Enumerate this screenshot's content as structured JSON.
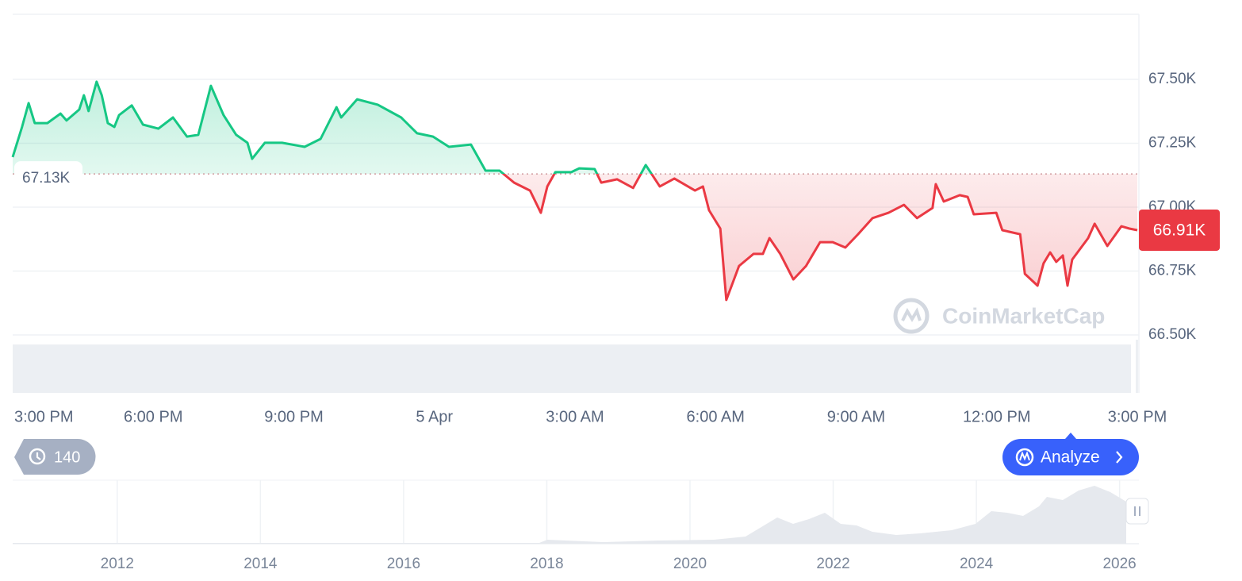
{
  "chart_data": {
    "type": "line",
    "x": [
      0,
      0.2,
      0.34,
      0.47,
      0.74,
      1.02,
      1.15,
      1.42,
      1.52,
      1.62,
      1.79,
      1.9,
      2.03,
      2.17,
      2.27,
      2.54,
      2.78,
      3.11,
      3.42,
      3.72,
      3.96,
      4.23,
      4.5,
      4.77,
      5.01,
      5.11,
      5.38,
      5.75,
      6.23,
      6.57,
      6.91,
      7.01,
      7.35,
      7.79,
      8.29,
      8.63,
      8.97,
      9.31,
      9.78,
      10.09,
      10.39,
      10.7,
      11.04,
      11.27,
      11.41,
      11.58,
      11.92,
      12.09,
      12.42,
      12.56,
      12.9,
      13.24,
      13.51,
      13.81,
      14.12,
      14.56,
      14.73,
      14.86,
      15.1,
      15.23,
      15.5,
      15.81,
      16.01,
      16.15,
      16.38,
      16.66,
      16.93,
      17.23,
      17.5,
      17.77,
      18.04,
      18.35,
      18.69,
      19.02,
      19.3,
      19.63,
      19.7,
      19.87,
      20.21,
      20.38,
      20.51,
      20.99,
      21.12,
      21.5,
      21.6,
      21.87,
      22.0,
      22.14,
      22.27,
      22.41,
      22.51,
      22.61,
      22.95,
      23.09,
      23.36,
      23.66,
      23.83,
      24
    ],
    "values": [
      67196,
      67314,
      67407,
      67329,
      67329,
      67366,
      67339,
      67382,
      67438,
      67376,
      67491,
      67438,
      67329,
      67314,
      67360,
      67398,
      67323,
      67307,
      67351,
      67276,
      67283,
      67475,
      67360,
      67283,
      67252,
      67189,
      67252,
      67252,
      67236,
      67267,
      67391,
      67351,
      67422,
      67401,
      67351,
      67289,
      67276,
      67236,
      67245,
      67143,
      67143,
      67096,
      67065,
      66978,
      67081,
      67137,
      67137,
      67152,
      67149,
      67096,
      67109,
      67075,
      67165,
      67081,
      67112,
      67065,
      67081,
      66988,
      66916,
      66637,
      66770,
      66817,
      66817,
      66879,
      66817,
      66717,
      66770,
      66863,
      66863,
      66842,
      66894,
      66957,
      66978,
      67009,
      66957,
      66997,
      67090,
      67022,
      67047,
      67040,
      66972,
      66978,
      66910,
      66894,
      66739,
      66693,
      66780,
      66823,
      66786,
      66811,
      66693,
      66795,
      66879,
      66935,
      66848,
      66925,
      66916,
      66910
    ],
    "color_up": "#16c784",
    "color_down": "#ea3943",
    "baseline": {
      "value": 67130,
      "label": "67.13K"
    },
    "last_price": {
      "value": 66910,
      "label": "66.91K"
    },
    "xlim": [
      0,
      24
    ],
    "xticks": [
      {
        "value": 0,
        "label": "3:00 PM"
      },
      {
        "value": 3,
        "label": "6:00 PM"
      },
      {
        "value": 6,
        "label": "9:00 PM"
      },
      {
        "value": 9,
        "label": "5 Apr"
      },
      {
        "value": 12,
        "label": "3:00 AM"
      },
      {
        "value": 15,
        "label": "6:00 AM"
      },
      {
        "value": 18,
        "label": "9:00 AM"
      },
      {
        "value": 21,
        "label": "12:00 PM"
      },
      {
        "value": 24,
        "label": "3:00 PM"
      }
    ],
    "ylim": [
      66500,
      67750
    ],
    "yticks": [
      {
        "value": 66500,
        "label": "66.50K"
      },
      {
        "value": 66750,
        "label": "66.75K"
      },
      {
        "value": 67000,
        "label": "67.00K"
      },
      {
        "value": 67250,
        "label": "67.25K"
      },
      {
        "value": 67500,
        "label": "67.50K"
      }
    ],
    "grid": true
  },
  "navigator": {
    "xlim": [
      2010.54,
      2026.27
    ],
    "xticks": [
      2012,
      2014,
      2016,
      2018,
      2020,
      2022,
      2024,
      2026
    ]
  },
  "watermark": "CoinMarketCap",
  "history_count": 140,
  "analyze_button": "Analyze"
}
